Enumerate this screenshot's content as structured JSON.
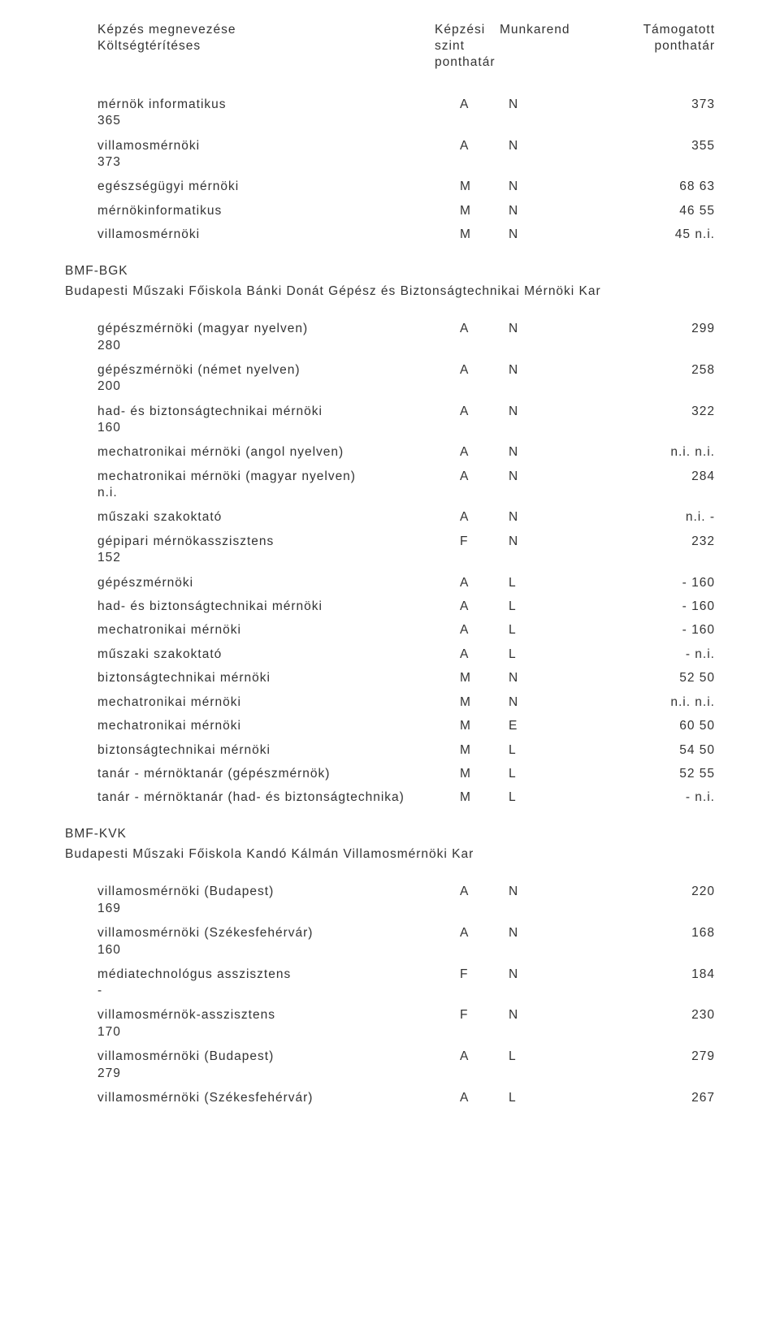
{
  "header": {
    "col_name": "Képzés megnevezése",
    "col_szint": "Képzési",
    "col_munkarend": "Munkarend",
    "col_tamogatott": "Támogatott",
    "line2_name": "Költségtérítéses",
    "line2_szint": "szint",
    "line2_ponthatar_right": "ponthatár",
    "line3_ponthatar": "ponthatár"
  },
  "group1": {
    "rows": [
      {
        "label": "mérnök informatikus",
        "a": "A",
        "b": "N",
        "c": "373",
        "sub": "365"
      },
      {
        "label": "villamosmérnöki",
        "a": "A",
        "b": "N",
        "c": "355",
        "sub": "373"
      },
      {
        "label": "egészségügyi mérnöki",
        "a": "M",
        "b": "N",
        "c": "68 63"
      },
      {
        "label": "mérnökinformatikus",
        "a": "M",
        "b": "N",
        "c": "46 55"
      },
      {
        "label": "villamosmérnöki",
        "a": "M",
        "b": "N",
        "c": "45 n.i."
      }
    ]
  },
  "section2": {
    "code": "BMF-BGK",
    "title": "Budapesti Műszaki Főiskola Bánki Donát Gépész és Biztonságtechnikai Mérnöki Kar",
    "rows": [
      {
        "label": "gépészmérnöki (magyar nyelven)",
        "a": "A",
        "b": "N",
        "c": "299",
        "sub": "280"
      },
      {
        "label": "gépészmérnöki (német nyelven)",
        "a": "A",
        "b": "N",
        "c": "258",
        "sub": "200"
      },
      {
        "label": "had- és biztonságtechnikai mérnöki",
        "a": "A",
        "b": "N",
        "c": "322",
        "sub": "160"
      },
      {
        "label": "mechatronikai mérnöki (angol nyelven)",
        "a": "A",
        "b": "N",
        "c": "n.i. n.i."
      },
      {
        "label": "mechatronikai mérnöki (magyar nyelven)",
        "a": "A",
        "b": "N",
        "c": "284",
        "sub": "n.i."
      },
      {
        "label": "műszaki szakoktató",
        "a": "A",
        "b": "N",
        "c": "n.i. -"
      },
      {
        "label": "gépipari mérnökasszisztens",
        "a": "F",
        "b": "N",
        "c": "232",
        "sub": "152"
      },
      {
        "label": "gépészmérnöki",
        "a": "A",
        "b": "L",
        "c": "-  160"
      },
      {
        "label": "had- és biztonságtechnikai mérnöki",
        "a": "A",
        "b": "L",
        "c": "-  160"
      },
      {
        "label": "mechatronikai mérnöki",
        "a": "A",
        "b": "L",
        "c": "-  160"
      },
      {
        "label": "műszaki szakoktató",
        "a": "A",
        "b": "L",
        "c": "-  n.i."
      },
      {
        "label": "biztonságtechnikai mérnöki",
        "a": "M",
        "b": "N",
        "c": "52 50"
      },
      {
        "label": "mechatronikai mérnöki",
        "a": "M",
        "b": "N",
        "c": "n.i. n.i."
      },
      {
        "label": "mechatronikai mérnöki",
        "a": "M",
        "b": "E",
        "c": "60 50"
      },
      {
        "label": "biztonságtechnikai mérnöki",
        "a": "M",
        "b": "L",
        "c": "54 50"
      },
      {
        "label": "tanár - mérnöktanár (gépészmérnök)",
        "a": "M",
        "b": "L",
        "c": "52 55"
      },
      {
        "label": "tanár - mérnöktanár (had- és biztonságtechnika)",
        "a": "M",
        "b": "L",
        "c": "-  n.i."
      }
    ]
  },
  "section3": {
    "code": "BMF-KVK",
    "title": "Budapesti Műszaki Főiskola Kandó Kálmán Villamosmérnöki Kar",
    "rows": [
      {
        "label": "villamosmérnöki (Budapest)",
        "a": "A",
        "b": "N",
        "c": "220",
        "sub": "169"
      },
      {
        "label": "villamosmérnöki (Székesfehérvár)",
        "a": "A",
        "b": "N",
        "c": "168",
        "sub": "160"
      },
      {
        "label": "médiatechnológus asszisztens",
        "a": "F",
        "b": "N",
        "c": "184",
        "sub": "-"
      },
      {
        "label": "villamosmérnök-asszisztens",
        "a": "F",
        "b": "N",
        "c": "230",
        "sub": "170"
      },
      {
        "label": "villamosmérnöki (Budapest)",
        "a": "A",
        "b": "L",
        "c": "279",
        "sub": "279"
      },
      {
        "label": "villamosmérnöki (Székesfehérvár)",
        "a": "A",
        "b": "L",
        "c": "267"
      }
    ]
  }
}
